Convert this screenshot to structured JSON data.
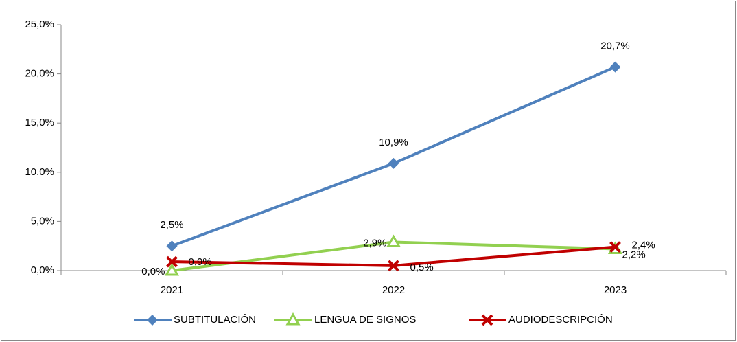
{
  "chart_data": {
    "type": "line",
    "categories": [
      "2021",
      "2022",
      "2023"
    ],
    "series": [
      {
        "name": "SUBTITULACIÓN",
        "color": "#4f81bd",
        "marker": "diamond",
        "values": [
          2.5,
          10.9,
          20.7
        ],
        "value_labels": [
          "2,5%",
          "10,9%",
          "20,7%"
        ]
      },
      {
        "name": "LENGUA DE SIGNOS",
        "color": "#92d050",
        "marker": "triangle",
        "values": [
          0.0,
          2.9,
          2.2
        ],
        "value_labels": [
          "0,0%",
          "2,9%",
          "2,2%"
        ]
      },
      {
        "name": "AUDIODESCRIPCIÓN",
        "color": "#c00000",
        "marker": "x",
        "values": [
          0.9,
          0.5,
          2.4
        ],
        "value_labels": [
          "0,9%",
          "0,5%",
          "2,4%"
        ]
      }
    ],
    "ylim": [
      0,
      25
    ],
    "yticks": [
      {
        "value": 0,
        "label": "0,0%"
      },
      {
        "value": 5,
        "label": "5,0%"
      },
      {
        "value": 10,
        "label": "10,0%"
      },
      {
        "value": 15,
        "label": "15,0%"
      },
      {
        "value": 20,
        "label": "20,0%"
      },
      {
        "value": 25,
        "label": "25,0%"
      }
    ],
    "grid": false,
    "legend": "bottom"
  }
}
